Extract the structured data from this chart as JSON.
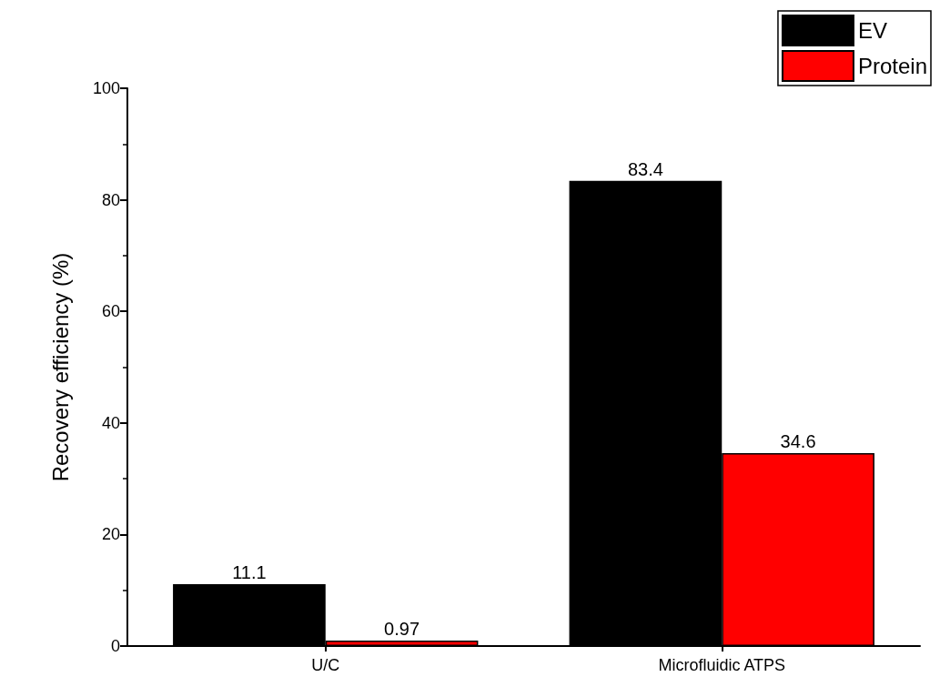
{
  "chart_data": {
    "type": "bar",
    "ylabel": "Recovery efficiency (%)",
    "categories": [
      "U/C",
      "Microfluidic ATPS"
    ],
    "series": [
      {
        "name": "EV",
        "color": "#000000",
        "values": [
          11.1,
          83.4
        ]
      },
      {
        "name": "Protein",
        "color": "#ff0000",
        "values": [
          0.97,
          34.6
        ]
      }
    ],
    "ylim": [
      0,
      100
    ],
    "yticks": [
      0,
      20,
      40,
      60,
      80,
      100
    ],
    "grid": false,
    "legend": "top right",
    "data_labels": true
  }
}
